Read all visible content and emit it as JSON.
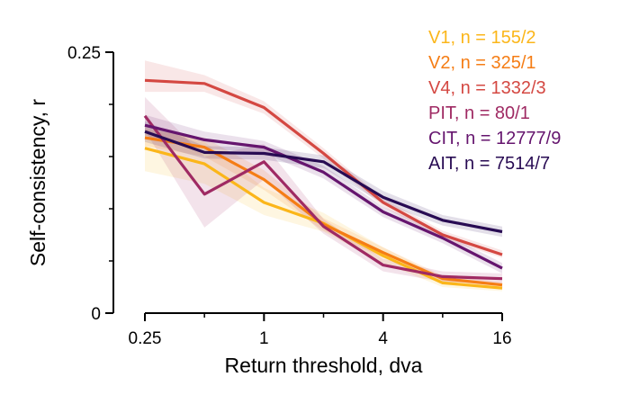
{
  "chart_data": {
    "type": "line",
    "title": "",
    "xlabel": "Return threshold, dva",
    "ylabel": "Self-consistency, r",
    "x_scale": "log2",
    "x": [
      0.25,
      0.5,
      1,
      2,
      4,
      8,
      16
    ],
    "xlim": [
      0.25,
      16
    ],
    "xticks": [
      {
        "value": 0.25,
        "label": "0.25"
      },
      {
        "value": 1,
        "label": "1"
      },
      {
        "value": 4,
        "label": "4"
      },
      {
        "value": 16,
        "label": "16"
      }
    ],
    "xminor": [
      0.5,
      2,
      8
    ],
    "ylim": [
      0,
      0.25
    ],
    "yticks": [
      {
        "value": 0,
        "label": "0"
      },
      {
        "value": 0.25,
        "label": "0.25"
      }
    ],
    "yminor": [
      0.05,
      0.1,
      0.15,
      0.2
    ],
    "grid": false,
    "legend_position": "top-right",
    "series": [
      {
        "name": "V1, n = 155/2",
        "color": "#fbb61a",
        "values": [
          0.158,
          0.143,
          0.106,
          0.086,
          0.055,
          0.029,
          0.024
        ],
        "lower": [
          0.136,
          0.124,
          0.094,
          0.078,
          0.048,
          0.025,
          0.021
        ],
        "upper": [
          0.18,
          0.164,
          0.12,
          0.096,
          0.063,
          0.034,
          0.028
        ]
      },
      {
        "name": "V2, n = 325/1",
        "color": "#f57d15",
        "values": [
          0.168,
          0.159,
          0.128,
          0.085,
          0.058,
          0.033,
          0.027
        ],
        "lower": [
          0.16,
          0.15,
          0.118,
          0.079,
          0.053,
          0.03,
          0.024
        ],
        "upper": [
          0.176,
          0.168,
          0.137,
          0.091,
          0.063,
          0.036,
          0.03
        ]
      },
      {
        "name": "V4, n = 1332/3",
        "color": "#d44842",
        "values": [
          0.223,
          0.22,
          0.197,
          0.153,
          0.106,
          0.075,
          0.056
        ],
        "lower": [
          0.212,
          0.212,
          0.191,
          0.148,
          0.102,
          0.071,
          0.053
        ],
        "upper": [
          0.242,
          0.228,
          0.203,
          0.158,
          0.11,
          0.079,
          0.06
        ]
      },
      {
        "name": "PIT, n = 80/1",
        "color": "#9f2a63",
        "values": [
          0.189,
          0.114,
          0.145,
          0.083,
          0.046,
          0.035,
          0.033
        ],
        "lower": [
          0.175,
          0.082,
          0.128,
          0.076,
          0.04,
          0.03,
          0.028
        ],
        "upper": [
          0.207,
          0.15,
          0.162,
          0.09,
          0.052,
          0.04,
          0.038
        ]
      },
      {
        "name": "CIT, n = 12777/9",
        "color": "#65156e",
        "values": [
          0.18,
          0.166,
          0.159,
          0.135,
          0.097,
          0.072,
          0.043
        ],
        "lower": [
          0.17,
          0.158,
          0.153,
          0.129,
          0.092,
          0.067,
          0.038
        ],
        "upper": [
          0.19,
          0.174,
          0.165,
          0.141,
          0.102,
          0.077,
          0.048
        ]
      },
      {
        "name": "AIT, n = 7514/7",
        "color": "#280b53",
        "values": [
          0.174,
          0.154,
          0.153,
          0.145,
          0.111,
          0.089,
          0.078
        ],
        "lower": [
          0.164,
          0.148,
          0.147,
          0.139,
          0.105,
          0.084,
          0.073
        ],
        "upper": [
          0.184,
          0.16,
          0.159,
          0.151,
          0.117,
          0.094,
          0.083
        ]
      }
    ]
  }
}
